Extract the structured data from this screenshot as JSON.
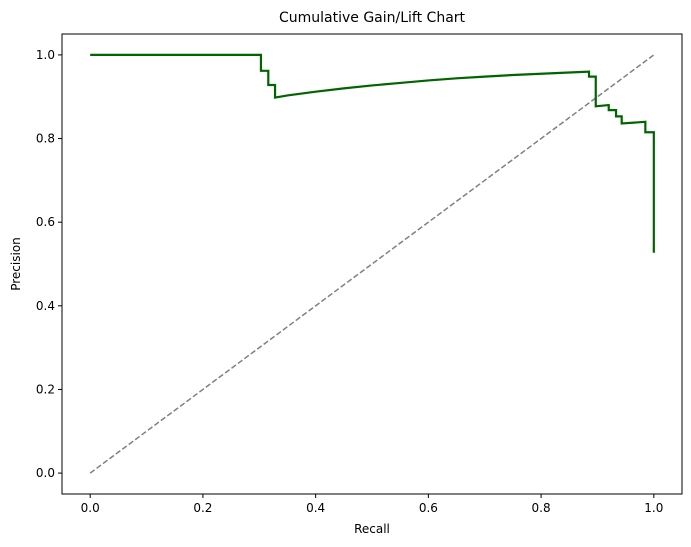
{
  "chart_data": {
    "type": "line",
    "title": "Cumulative Gain/Lift Chart",
    "xlabel": "Recall",
    "ylabel": "Precision",
    "xlim": [
      -0.05,
      1.05
    ],
    "ylim": [
      -0.05,
      1.05
    ],
    "xticks": [
      0.0,
      0.2,
      0.4,
      0.6,
      0.8,
      1.0
    ],
    "xtick_labels": [
      "0.0",
      "0.2",
      "0.4",
      "0.6",
      "0.8",
      "1.0"
    ],
    "yticks": [
      0.0,
      0.2,
      0.4,
      0.6,
      0.8,
      1.0
    ],
    "ytick_labels": [
      "0.0",
      "0.2",
      "0.4",
      "0.6",
      "0.8",
      "1.0"
    ],
    "grid": false,
    "legend": "none",
    "series": [
      {
        "style": "solid",
        "color": "#006400",
        "x": [
          0.0,
          0.303,
          0.303,
          0.316,
          0.316,
          0.328,
          0.328,
          0.35,
          0.4,
          0.45,
          0.5,
          0.55,
          0.6,
          0.65,
          0.7,
          0.75,
          0.8,
          0.85,
          0.885,
          0.885,
          0.897,
          0.897,
          0.92,
          0.92,
          0.933,
          0.933,
          0.943,
          0.943,
          0.985,
          0.985,
          1.0,
          1.0
        ],
        "y": [
          1.0,
          1.0,
          0.962,
          0.962,
          0.928,
          0.928,
          0.898,
          0.903,
          0.912,
          0.92,
          0.927,
          0.933,
          0.939,
          0.944,
          0.948,
          0.952,
          0.955,
          0.958,
          0.96,
          0.948,
          0.948,
          0.877,
          0.88,
          0.868,
          0.868,
          0.853,
          0.853,
          0.836,
          0.84,
          0.815,
          0.815,
          0.527
        ]
      },
      {
        "style": "dashed",
        "color": "#808080",
        "x": [
          0.0,
          1.0
        ],
        "y": [
          0.0,
          1.0
        ]
      }
    ]
  }
}
